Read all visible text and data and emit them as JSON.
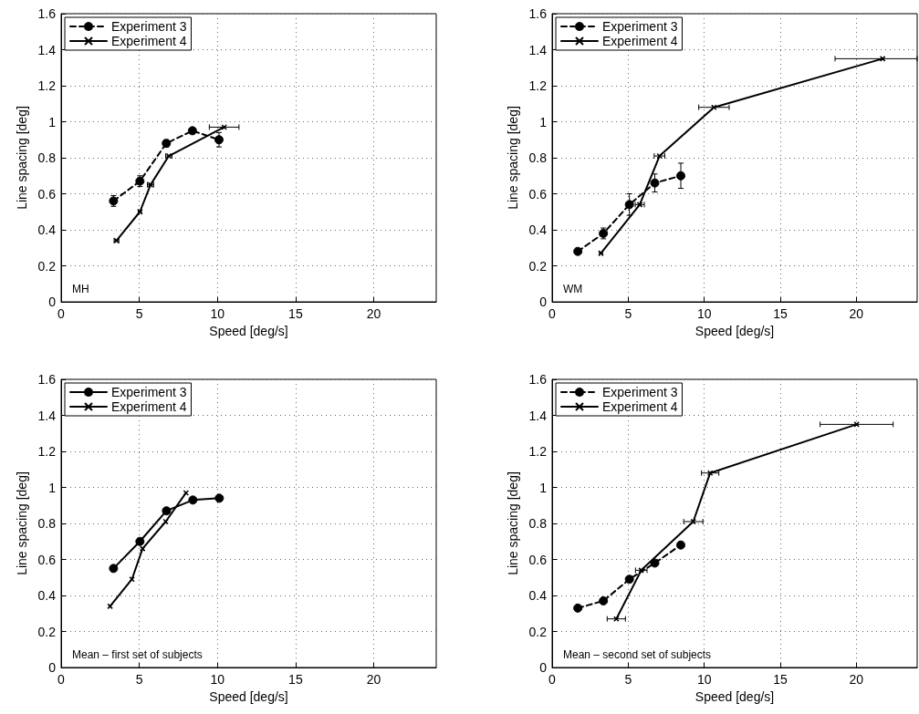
{
  "chart_data": [
    {
      "type": "line",
      "xlabel": "Speed [deg/s]",
      "ylabel": "Line spacing [deg]",
      "annotations": [
        "MH"
      ],
      "xlim": [
        0,
        24
      ],
      "xticks": [
        0,
        5,
        10,
        15,
        20
      ],
      "ylim": [
        0,
        1.6
      ],
      "yticks": [
        0,
        0.2,
        0.4,
        0.6,
        0.8,
        1,
        1.2,
        1.4,
        1.6
      ],
      "grid": true,
      "legend": "top left",
      "series": [
        {
          "name": "Experiment 3",
          "color": "#000000",
          "line_style": "dashed",
          "marker": "circle",
          "x": [
            3.35,
            5.04,
            6.73,
            8.4,
            10.1
          ],
          "values": [
            0.56,
            0.67,
            0.88,
            0.95,
            0.9
          ],
          "errors": [
            0.03,
            0.03,
            0.02,
            0.01,
            0.04
          ]
        },
        {
          "name": "Experiment 4",
          "color": "#000000",
          "line_style": "solid",
          "marker": "cross",
          "x": [
            3.54,
            5.04,
            5.72,
            6.89,
            10.43
          ],
          "values": [
            0.34,
            0.5,
            0.65,
            0.81,
            0.97
          ],
          "xerrors": [
            0.15,
            0.1,
            0.2,
            0.2,
            0.95
          ]
        }
      ]
    },
    {
      "type": "line",
      "xlabel": "Speed [deg/s]",
      "ylabel": "Line spacing [deg]",
      "annotations": [
        "WM"
      ],
      "xlim": [
        0,
        24
      ],
      "xticks": [
        0,
        5,
        10,
        15,
        20
      ],
      "ylim": [
        0,
        1.6
      ],
      "yticks": [
        0,
        0.2,
        0.4,
        0.6,
        0.8,
        1,
        1.2,
        1.4,
        1.6
      ],
      "grid": true,
      "legend": "top left",
      "series": [
        {
          "name": "Experiment 3",
          "color": "#000000",
          "line_style": "dashed",
          "marker": "circle",
          "x": [
            1.69,
            3.37,
            5.08,
            6.75,
            8.46
          ],
          "values": [
            0.28,
            0.38,
            0.54,
            0.66,
            0.7
          ],
          "errors": [
            0.01,
            0.03,
            0.06,
            0.05,
            0.07
          ]
        },
        {
          "name": "Experiment 4",
          "color": "#000000",
          "line_style": "solid",
          "marker": "cross",
          "x": [
            3.21,
            5.76,
            7.06,
            10.64,
            21.73
          ],
          "values": [
            0.27,
            0.54,
            0.81,
            1.08,
            1.35
          ],
          "xerrors": [
            0.1,
            0.3,
            0.35,
            1,
            [
              18.6,
              24
            ]
          ]
        }
      ]
    },
    {
      "type": "line",
      "xlabel": "Speed [deg/s]",
      "ylabel": "Line spacing [deg]",
      "annotations": [
        "Mean – first set of subjects"
      ],
      "xlim": [
        0,
        24
      ],
      "xticks": [
        0,
        5,
        10,
        15,
        20
      ],
      "ylim": [
        0,
        1.6
      ],
      "yticks": [
        0,
        0.2,
        0.4,
        0.6,
        0.8,
        1,
        1.2,
        1.4,
        1.6
      ],
      "grid": true,
      "legend": "top left",
      "series": [
        {
          "name": "Experiment 3",
          "color": "#000000",
          "line_style": "solid",
          "marker": "circle",
          "x": [
            3.35,
            5.04,
            6.74,
            8.43,
            10.12
          ],
          "values": [
            0.55,
            0.7,
            0.87,
            0.93,
            0.94
          ]
        },
        {
          "name": "Experiment 4",
          "color": "#000000",
          "line_style": "solid",
          "marker": "cross",
          "x": [
            3.13,
            4.53,
            5.21,
            6.69,
            7.99
          ],
          "values": [
            0.34,
            0.49,
            0.66,
            0.81,
            0.97
          ]
        }
      ]
    },
    {
      "type": "line",
      "xlabel": "Speed [deg/s]",
      "ylabel": "Line spacing [deg]",
      "annotations": [
        "Mean – second set of subjects"
      ],
      "xlim": [
        0,
        24
      ],
      "xticks": [
        0,
        5,
        10,
        15,
        20
      ],
      "ylim": [
        0,
        1.6
      ],
      "yticks": [
        0,
        0.2,
        0.4,
        0.6,
        0.8,
        1,
        1.2,
        1.4,
        1.6
      ],
      "grid": true,
      "legend": "top left",
      "series": [
        {
          "name": "Experiment 3",
          "color": "#000000",
          "line_style": "dashed",
          "marker": "circle",
          "x": [
            1.69,
            3.37,
            5.08,
            6.75,
            8.46
          ],
          "values": [
            0.33,
            0.37,
            0.49,
            0.58,
            0.68
          ]
        },
        {
          "name": "Experiment 4",
          "color": "#000000",
          "line_style": "solid",
          "marker": "cross",
          "x": [
            4.22,
            5.86,
            9.28,
            10.39,
            20.02
          ],
          "values": [
            0.27,
            0.54,
            0.81,
            1.08,
            1.35
          ],
          "xerrors": [
            0.6,
            0.38,
            0.63,
            0.57,
            2.4
          ]
        }
      ]
    }
  ]
}
